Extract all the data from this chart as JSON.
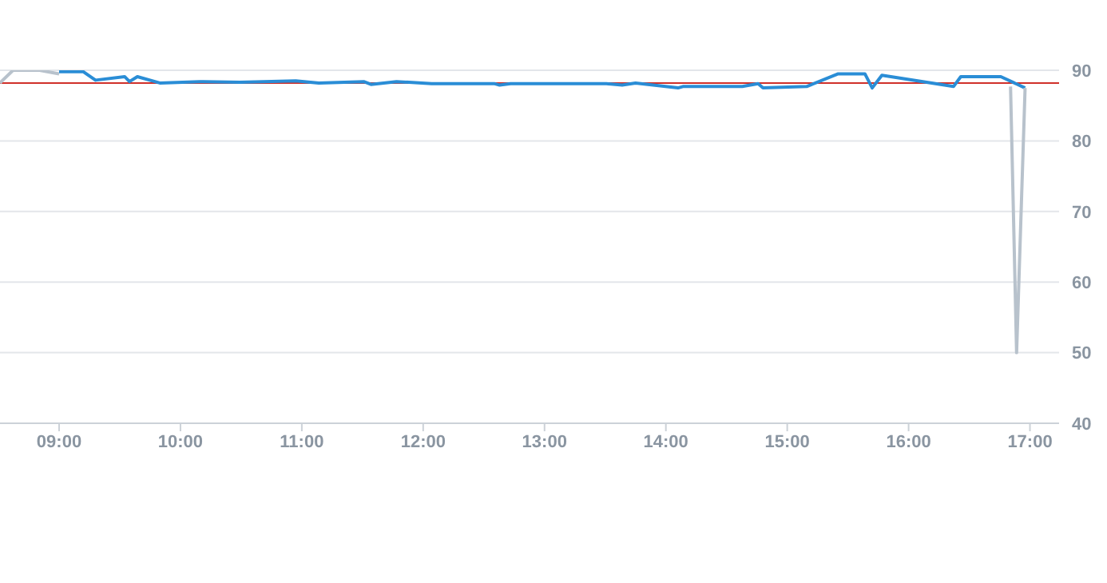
{
  "chart_data": {
    "type": "line",
    "xlim": [
      8.513,
      17.24
    ],
    "xticks": [
      {
        "value": 9,
        "label": "09:00"
      },
      {
        "value": 10,
        "label": "10:00"
      },
      {
        "value": 11,
        "label": "11:00"
      },
      {
        "value": 12,
        "label": "12:00"
      },
      {
        "value": 13,
        "label": "13:00"
      },
      {
        "value": 14,
        "label": "14:00"
      },
      {
        "value": 15,
        "label": "15:00"
      },
      {
        "value": 16,
        "label": "16:00"
      },
      {
        "value": 17,
        "label": "17:00"
      }
    ],
    "ylim": [
      40,
      90
    ],
    "yticks": [
      40,
      50,
      60,
      70,
      80,
      90
    ],
    "grid": "y",
    "marker": "none",
    "series": [
      {
        "color": "#b8c2cc",
        "x": [
          8.513,
          8.62,
          8.84,
          9.0
        ],
        "values": [
          88.2,
          90,
          90,
          89.5
        ]
      },
      {
        "color": "#2a8dd6",
        "x": [
          9.0,
          9.2,
          9.3,
          9.54,
          9.58,
          9.645,
          9.83,
          10.16,
          10.49,
          10.95,
          11.14,
          11.51,
          11.57,
          11.78,
          12.07,
          12.59,
          12.63,
          12.72,
          13.51,
          13.64,
          13.75,
          14.1,
          14.14,
          14.63,
          14.76,
          14.8,
          15.16,
          15.42,
          15.64,
          15.7,
          15.78,
          16.37,
          16.43,
          16.76,
          16.96
        ],
        "values": [
          89.8,
          89.8,
          88.6,
          89.1,
          88.4,
          89.1,
          88.2,
          88.4,
          88.3,
          88.5,
          88.2,
          88.4,
          88.0,
          88.4,
          88.1,
          88.1,
          87.9,
          88.1,
          88.1,
          87.9,
          88.2,
          87.5,
          87.7,
          87.7,
          88.1,
          87.5,
          87.7,
          89.5,
          89.5,
          87.5,
          89.3,
          87.7,
          89.1,
          89.1,
          87.5
        ]
      },
      {
        "color": "#b8c2cc",
        "x": [
          16.84,
          16.89,
          16.96
        ],
        "values": [
          87.7,
          50,
          87.5
        ]
      }
    ],
    "ref_lines": [
      {
        "axis": "y",
        "value": 88.2,
        "color": "#d0302a"
      }
    ]
  }
}
